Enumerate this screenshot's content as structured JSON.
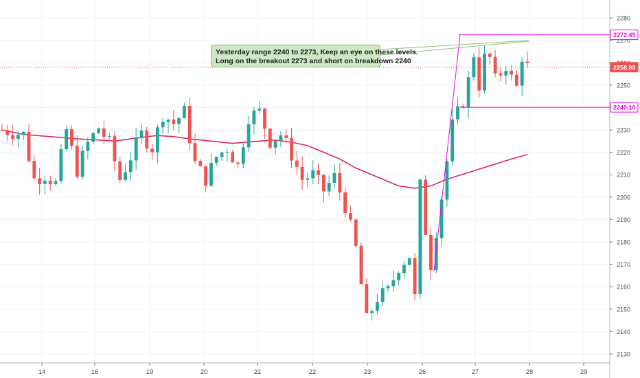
{
  "chart_data": {
    "type": "candlestick",
    "title": "",
    "xlabel": "",
    "ylabel": "",
    "x_tick_labels": [
      "14",
      "16",
      "19",
      "20",
      "21",
      "22",
      "23",
      "26",
      "27",
      "28",
      "29"
    ],
    "y_ticks": [
      2130,
      2140,
      2150,
      2160,
      2170,
      2180,
      2190,
      2200,
      2210,
      2220,
      2230,
      2240,
      2250,
      2260,
      2270,
      2280
    ],
    "ylim": [
      2126,
      2288
    ],
    "grid": true,
    "colors": {
      "up": "#26a69a",
      "down": "#ef5350",
      "ma": "#e0245e",
      "annotation": "#ee00ee"
    },
    "price_labels": [
      {
        "text": "2272.45",
        "value": 2272.45,
        "color": "#ee00ee",
        "filled": false
      },
      {
        "text": "2258.00",
        "value": 2258.0,
        "color": "#ef5350",
        "filled": true
      },
      {
        "text": "2240.10",
        "value": 2240.1,
        "color": "#ee00ee",
        "filled": false
      }
    ],
    "annotation_text": [
      "Yesterday range 2240 to 2273, Keep an eye on these levels.",
      "Long on the breakout 2273 and short on breakdown 2240"
    ],
    "moving_average": [
      [
        0,
        2230
      ],
      [
        4,
        2228
      ],
      [
        9,
        2227
      ],
      [
        14,
        2226
      ],
      [
        18,
        2225.5
      ],
      [
        21,
        2225
      ],
      [
        24,
        2226
      ],
      [
        27,
        2227
      ],
      [
        29,
        2227.5
      ],
      [
        32,
        2227
      ],
      [
        35,
        2226
      ],
      [
        39,
        2225
      ],
      [
        43,
        2224
      ],
      [
        48,
        2225
      ],
      [
        51,
        2225.5
      ],
      [
        54,
        2224.5
      ],
      [
        57,
        2223
      ],
      [
        60,
        2220
      ],
      [
        63,
        2217
      ],
      [
        66,
        2213
      ],
      [
        69,
        2210
      ],
      [
        72,
        2207
      ],
      [
        74,
        2205
      ],
      [
        77,
        2204
      ],
      [
        80,
        2205
      ],
      [
        83,
        2208
      ],
      [
        87,
        2211
      ],
      [
        91,
        2214
      ],
      [
        95,
        2217
      ],
      [
        98,
        2219
      ]
    ],
    "candle_count": 99
  }
}
